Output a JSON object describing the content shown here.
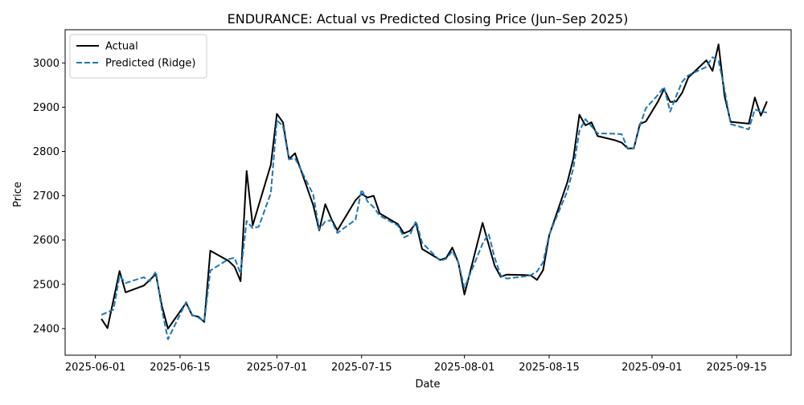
{
  "chart_data": {
    "type": "line",
    "title": "ENDURANCE: Actual vs Predicted Closing Price (Jun–Sep 2025)",
    "xlabel": "Date",
    "ylabel": "Price",
    "xlim": [
      "2025-05-27",
      "2025-09-24"
    ],
    "ylim": [
      2340,
      3075
    ],
    "x_ticks": [
      {
        "date": "2025-06-01",
        "label": "2025-06-01"
      },
      {
        "date": "2025-06-15",
        "label": "2025-06-15"
      },
      {
        "date": "2025-07-01",
        "label": "2025-07-01"
      },
      {
        "date": "2025-07-15",
        "label": "2025-07-15"
      },
      {
        "date": "2025-08-01",
        "label": "2025-08-01"
      },
      {
        "date": "2025-08-15",
        "label": "2025-08-15"
      },
      {
        "date": "2025-09-01",
        "label": "2025-09-01"
      },
      {
        "date": "2025-09-15",
        "label": "2025-09-15"
      }
    ],
    "y_ticks": [
      2400,
      2500,
      2600,
      2700,
      2800,
      2900,
      3000
    ],
    "grid": false,
    "legend_position": "top-left",
    "series": [
      {
        "name": "Actual",
        "color": "#000000",
        "style": "solid",
        "points": [
          [
            "2025-06-02",
            2422
          ],
          [
            "2025-06-03",
            2401
          ],
          [
            "2025-06-05",
            2530
          ],
          [
            "2025-06-06",
            2482
          ],
          [
            "2025-06-09",
            2497
          ],
          [
            "2025-06-10",
            2510
          ],
          [
            "2025-06-11",
            2523
          ],
          [
            "2025-06-12",
            2451
          ],
          [
            "2025-06-13",
            2400
          ],
          [
            "2025-06-16",
            2458
          ],
          [
            "2025-06-17",
            2430
          ],
          [
            "2025-06-18",
            2427
          ],
          [
            "2025-06-19",
            2415
          ],
          [
            "2025-06-20",
            2576
          ],
          [
            "2025-06-23",
            2553
          ],
          [
            "2025-06-24",
            2540
          ],
          [
            "2025-06-25",
            2507
          ],
          [
            "2025-06-26",
            2756
          ],
          [
            "2025-06-27",
            2633
          ],
          [
            "2025-06-30",
            2770
          ],
          [
            "2025-07-01",
            2885
          ],
          [
            "2025-07-02",
            2866
          ],
          [
            "2025-07-03",
            2783
          ],
          [
            "2025-07-04",
            2796
          ],
          [
            "2025-07-07",
            2679
          ],
          [
            "2025-07-08",
            2622
          ],
          [
            "2025-07-09",
            2681
          ],
          [
            "2025-07-10",
            2648
          ],
          [
            "2025-07-11",
            2622
          ],
          [
            "2025-07-14",
            2690
          ],
          [
            "2025-07-15",
            2704
          ],
          [
            "2025-07-16",
            2696
          ],
          [
            "2025-07-17",
            2700
          ],
          [
            "2025-07-18",
            2660
          ],
          [
            "2025-07-21",
            2636
          ],
          [
            "2025-07-22",
            2615
          ],
          [
            "2025-07-23",
            2621
          ],
          [
            "2025-07-24",
            2638
          ],
          [
            "2025-07-25",
            2580
          ],
          [
            "2025-07-28",
            2555
          ],
          [
            "2025-07-29",
            2560
          ],
          [
            "2025-07-30",
            2583
          ],
          [
            "2025-07-31",
            2549
          ],
          [
            "2025-08-01",
            2477
          ],
          [
            "2025-08-04",
            2639
          ],
          [
            "2025-08-05",
            2590
          ],
          [
            "2025-08-06",
            2542
          ],
          [
            "2025-08-07",
            2517
          ],
          [
            "2025-08-08",
            2522
          ],
          [
            "2025-08-11",
            2521
          ],
          [
            "2025-08-12",
            2520
          ],
          [
            "2025-08-13",
            2510
          ],
          [
            "2025-08-14",
            2532
          ],
          [
            "2025-08-15",
            2610
          ],
          [
            "2025-08-18",
            2730
          ],
          [
            "2025-08-19",
            2784
          ],
          [
            "2025-08-20",
            2883
          ],
          [
            "2025-08-21",
            2859
          ],
          [
            "2025-08-22",
            2866
          ],
          [
            "2025-08-23",
            2835
          ],
          [
            "2025-08-26",
            2825
          ],
          [
            "2025-08-27",
            2820
          ],
          [
            "2025-08-28",
            2807
          ],
          [
            "2025-08-29",
            2807
          ],
          [
            "2025-08-30",
            2862
          ],
          [
            "2025-08-31",
            2868
          ],
          [
            "2025-09-02",
            2913
          ],
          [
            "2025-09-03",
            2941
          ],
          [
            "2025-09-04",
            2912
          ],
          [
            "2025-09-05",
            2913
          ],
          [
            "2025-09-06",
            2933
          ],
          [
            "2025-09-07",
            2967
          ],
          [
            "2025-09-10",
            3006
          ],
          [
            "2025-09-11",
            2982
          ],
          [
            "2025-09-12",
            3042
          ],
          [
            "2025-09-13",
            2925
          ],
          [
            "2025-09-14",
            2867
          ],
          [
            "2025-09-17",
            2863
          ],
          [
            "2025-09-18",
            2922
          ],
          [
            "2025-09-19",
            2881
          ],
          [
            "2025-09-20",
            2913
          ]
        ]
      },
      {
        "name": "Predicted (Ridge)",
        "color": "#1f77b4",
        "style": "dashed",
        "points": [
          [
            "2025-06-02",
            2431
          ],
          [
            "2025-06-03",
            2437
          ],
          [
            "2025-06-04",
            2443
          ],
          [
            "2025-06-05",
            2519
          ],
          [
            "2025-06-06",
            2503
          ],
          [
            "2025-06-09",
            2516
          ],
          [
            "2025-06-10",
            2507
          ],
          [
            "2025-06-11",
            2529
          ],
          [
            "2025-06-12",
            2442
          ],
          [
            "2025-06-13",
            2376
          ],
          [
            "2025-06-16",
            2460
          ],
          [
            "2025-06-17",
            2431
          ],
          [
            "2025-06-18",
            2425
          ],
          [
            "2025-06-19",
            2416
          ],
          [
            "2025-06-20",
            2531
          ],
          [
            "2025-06-23",
            2557
          ],
          [
            "2025-06-24",
            2560
          ],
          [
            "2025-06-25",
            2524
          ],
          [
            "2025-06-26",
            2643
          ],
          [
            "2025-06-27",
            2627
          ],
          [
            "2025-06-28",
            2630
          ],
          [
            "2025-06-30",
            2706
          ],
          [
            "2025-07-01",
            2870
          ],
          [
            "2025-07-02",
            2858
          ],
          [
            "2025-07-03",
            2782
          ],
          [
            "2025-07-04",
            2785
          ],
          [
            "2025-07-07",
            2703
          ],
          [
            "2025-07-08",
            2624
          ],
          [
            "2025-07-09",
            2642
          ],
          [
            "2025-07-10",
            2645
          ],
          [
            "2025-07-11",
            2616
          ],
          [
            "2025-07-14",
            2646
          ],
          [
            "2025-07-15",
            2714
          ],
          [
            "2025-07-16",
            2687
          ],
          [
            "2025-07-17",
            2674
          ],
          [
            "2025-07-18",
            2655
          ],
          [
            "2025-07-21",
            2633
          ],
          [
            "2025-07-22",
            2606
          ],
          [
            "2025-07-23",
            2612
          ],
          [
            "2025-07-24",
            2643
          ],
          [
            "2025-07-25",
            2594
          ],
          [
            "2025-07-28",
            2553
          ],
          [
            "2025-07-29",
            2558
          ],
          [
            "2025-07-30",
            2575
          ],
          [
            "2025-07-31",
            2549
          ],
          [
            "2025-08-01",
            2492
          ],
          [
            "2025-08-04",
            2592
          ],
          [
            "2025-08-05",
            2614
          ],
          [
            "2025-08-06",
            2560
          ],
          [
            "2025-08-07",
            2520
          ],
          [
            "2025-08-08",
            2513
          ],
          [
            "2025-08-11",
            2518
          ],
          [
            "2025-08-12",
            2521
          ],
          [
            "2025-08-13",
            2529
          ],
          [
            "2025-08-14",
            2550
          ],
          [
            "2025-08-15",
            2612
          ],
          [
            "2025-08-18",
            2710
          ],
          [
            "2025-08-19",
            2762
          ],
          [
            "2025-08-20",
            2846
          ],
          [
            "2025-08-21",
            2873
          ],
          [
            "2025-08-23",
            2841
          ],
          [
            "2025-08-26",
            2840
          ],
          [
            "2025-08-27",
            2839
          ],
          [
            "2025-08-28",
            2806
          ],
          [
            "2025-08-29",
            2808
          ],
          [
            "2025-08-30",
            2858
          ],
          [
            "2025-08-31",
            2898
          ],
          [
            "2025-09-02",
            2928
          ],
          [
            "2025-09-03",
            2946
          ],
          [
            "2025-09-04",
            2890
          ],
          [
            "2025-09-05",
            2925
          ],
          [
            "2025-09-06",
            2958
          ],
          [
            "2025-09-07",
            2972
          ],
          [
            "2025-09-10",
            2991
          ],
          [
            "2025-09-11",
            3013
          ],
          [
            "2025-09-12",
            3005
          ],
          [
            "2025-09-13",
            2940
          ],
          [
            "2025-09-14",
            2862
          ],
          [
            "2025-09-17",
            2850
          ],
          [
            "2025-09-18",
            2895
          ],
          [
            "2025-09-19",
            2890
          ],
          [
            "2025-09-20",
            2888
          ]
        ]
      }
    ]
  }
}
